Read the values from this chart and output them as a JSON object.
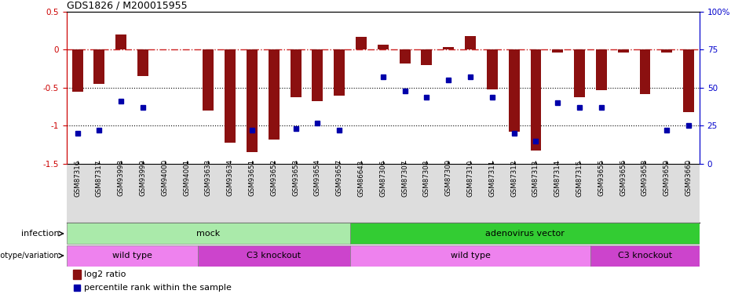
{
  "title": "GDS1826 / M200015955",
  "samples": [
    "GSM87316",
    "GSM87317",
    "GSM93998",
    "GSM93999",
    "GSM94000",
    "GSM94001",
    "GSM93633",
    "GSM93634",
    "GSM93651",
    "GSM93652",
    "GSM93653",
    "GSM93654",
    "GSM93657",
    "GSM86643",
    "GSM87306",
    "GSM87307",
    "GSM87308",
    "GSM87309",
    "GSM87310",
    "GSM87311",
    "GSM87312",
    "GSM87313",
    "GSM87314",
    "GSM87315",
    "GSM93655",
    "GSM93656",
    "GSM93658",
    "GSM93659",
    "GSM93660"
  ],
  "log2_ratio": [
    -0.55,
    -0.45,
    0.2,
    -0.35,
    0.0,
    0.0,
    -0.8,
    -1.22,
    -1.35,
    -1.18,
    -0.62,
    -0.68,
    -0.6,
    0.17,
    0.07,
    -0.18,
    -0.2,
    0.04,
    0.18,
    -0.52,
    -1.08,
    -1.33,
    -0.04,
    -0.62,
    -0.53,
    -0.04,
    -0.58,
    -0.04,
    -0.82
  ],
  "percentile_rank": [
    20,
    22,
    41,
    37,
    0,
    0,
    0,
    0,
    22,
    0,
    23,
    27,
    22,
    0,
    57,
    48,
    44,
    55,
    57,
    44,
    20,
    15,
    40,
    37,
    37,
    0,
    0,
    22,
    25
  ],
  "infection_groups": [
    {
      "label": "mock",
      "start": 0,
      "end": 12,
      "color": "#AAEAAA"
    },
    {
      "label": "adenovirus vector",
      "start": 13,
      "end": 28,
      "color": "#33CC33"
    }
  ],
  "genotype_groups": [
    {
      "label": "wild type",
      "start": 0,
      "end": 5,
      "color": "#EE82EE"
    },
    {
      "label": "C3 knockout",
      "start": 6,
      "end": 12,
      "color": "#CC44CC"
    },
    {
      "label": "wild type",
      "start": 13,
      "end": 23,
      "color": "#EE82EE"
    },
    {
      "label": "C3 knockout",
      "start": 24,
      "end": 28,
      "color": "#CC44CC"
    }
  ],
  "ylim_left": [
    -1.5,
    0.5
  ],
  "ylim_right": [
    0,
    100
  ],
  "bar_color": "#8B1010",
  "dot_color": "#0000AA",
  "ref_line_color": "#CC2222",
  "background_color": "#ffffff",
  "left_axis_color": "#CC0000",
  "right_axis_color": "#0000CC",
  "xtick_bg_color": "#DDDDDD"
}
